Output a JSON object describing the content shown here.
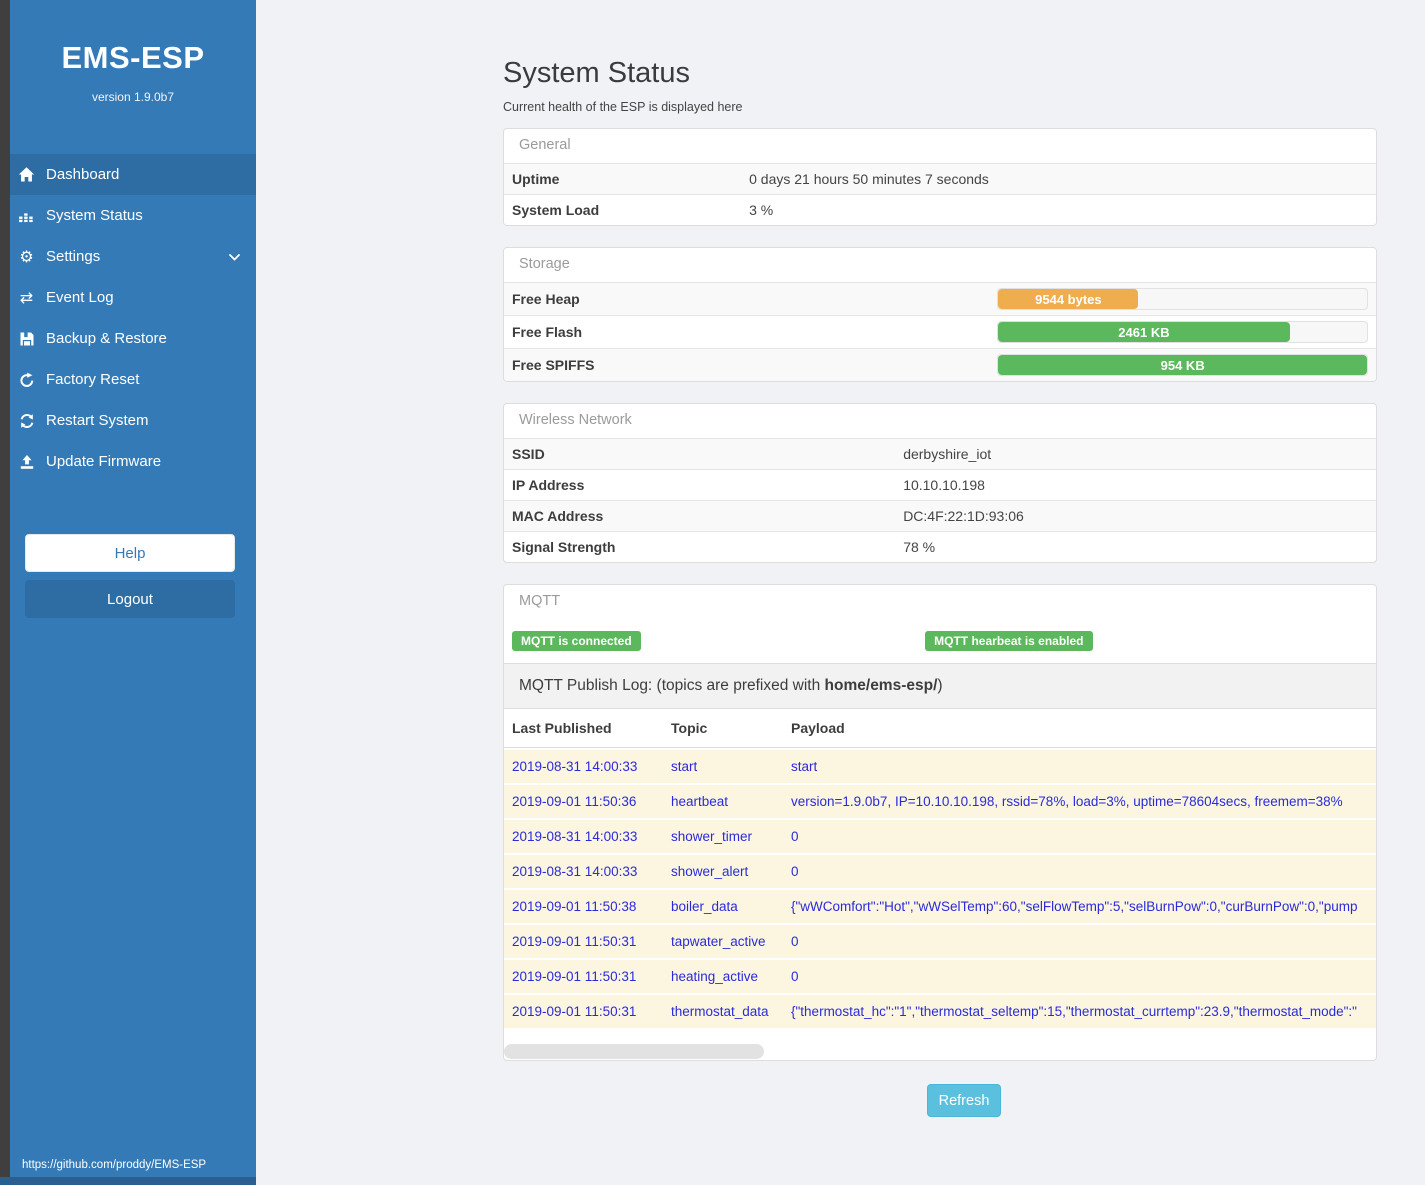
{
  "colors": {
    "sidebar_blue": "#337ab7",
    "sidebar_active_blue": "#2e6da4",
    "success_green": "#5cb85c",
    "warning_orange": "#f0ad4e",
    "info_cyan": "#5bc0de",
    "mqtt_row_bg": "#fcf6e1",
    "mqtt_row_text": "#2a2ada"
  },
  "sidebar": {
    "title": "EMS-ESP",
    "version": "version 1.9.0b7",
    "items": [
      {
        "label": "Dashboard",
        "icon": "home-icon",
        "active": true
      },
      {
        "label": "System Status",
        "icon": "status-icon",
        "active": false
      },
      {
        "label": "Settings",
        "icon": "gear-icon",
        "active": false,
        "chevron": "chevron-down-icon"
      },
      {
        "label": "Event Log",
        "icon": "exchange-icon",
        "active": false
      },
      {
        "label": "Backup & Restore",
        "icon": "save-icon",
        "active": false
      },
      {
        "label": "Factory Reset",
        "icon": "undo-icon",
        "active": false
      },
      {
        "label": "Restart System",
        "icon": "refresh-icon",
        "active": false
      },
      {
        "label": "Update Firmware",
        "icon": "upload-icon",
        "active": false
      }
    ],
    "help_label": "Help",
    "logout_label": "Logout",
    "footer_link": "https://github.com/proddy/EMS-ESP"
  },
  "page": {
    "title": "System Status",
    "subtitle": "Current health of the ESP is displayed here",
    "refresh_label": "Refresh"
  },
  "general": {
    "header": "General",
    "rows": [
      {
        "label": "Uptime",
        "value": "0 days 21 hours 50 minutes 7 seconds"
      },
      {
        "label": "System Load",
        "value": "3 %"
      }
    ]
  },
  "storage": {
    "header": "Storage",
    "rows": [
      {
        "label": "Free Heap",
        "value": "9544 bytes",
        "percent": 38,
        "color": "#f0ad4e"
      },
      {
        "label": "Free Flash",
        "value": "2461 KB",
        "percent": 79,
        "color": "#5cb85c"
      },
      {
        "label": "Free SPIFFS",
        "value": "954 KB",
        "percent": 100,
        "color": "#5cb85c"
      }
    ]
  },
  "wireless": {
    "header": "Wireless Network",
    "rows": [
      {
        "label": "SSID",
        "value": "derbyshire_iot"
      },
      {
        "label": "IP Address",
        "value": "10.10.10.198"
      },
      {
        "label": "MAC Address",
        "value": "DC:4F:22:1D:93:06"
      },
      {
        "label": "Signal Strength",
        "value": "78 %"
      }
    ]
  },
  "mqtt": {
    "header": "MQTT",
    "badges": [
      "MQTT is connected",
      "MQTT hearbeat is enabled"
    ],
    "publish_log_prefix": "MQTT Publish Log: (topics are prefixed with ",
    "publish_log_bold": "home/ems-esp/",
    "publish_log_suffix": ")",
    "columns": [
      "Last Published",
      "Topic",
      "Payload"
    ],
    "rows": [
      {
        "time": "2019-08-31 14:00:33",
        "topic": "start",
        "payload": "start"
      },
      {
        "time": "2019-09-01 11:50:36",
        "topic": "heartbeat",
        "payload": "version=1.9.0b7, IP=10.10.10.198, rssid=78%, load=3%, uptime=78604secs, freemem=38%"
      },
      {
        "time": "2019-08-31 14:00:33",
        "topic": "shower_timer",
        "payload": "0"
      },
      {
        "time": "2019-08-31 14:00:33",
        "topic": "shower_alert",
        "payload": "0"
      },
      {
        "time": "2019-09-01 11:50:38",
        "topic": "boiler_data",
        "payload": "{\"wWComfort\":\"Hot\",\"wWSelTemp\":60,\"selFlowTemp\":5,\"selBurnPow\":0,\"curBurnPow\":0,\"pump"
      },
      {
        "time": "2019-09-01 11:50:31",
        "topic": "tapwater_active",
        "payload": "0"
      },
      {
        "time": "2019-09-01 11:50:31",
        "topic": "heating_active",
        "payload": "0"
      },
      {
        "time": "2019-09-01 11:50:31",
        "topic": "thermostat_data",
        "payload": "{\"thermostat_hc\":\"1\",\"thermostat_seltemp\":15,\"thermostat_currtemp\":23.9,\"thermostat_mode\":\""
      }
    ]
  }
}
